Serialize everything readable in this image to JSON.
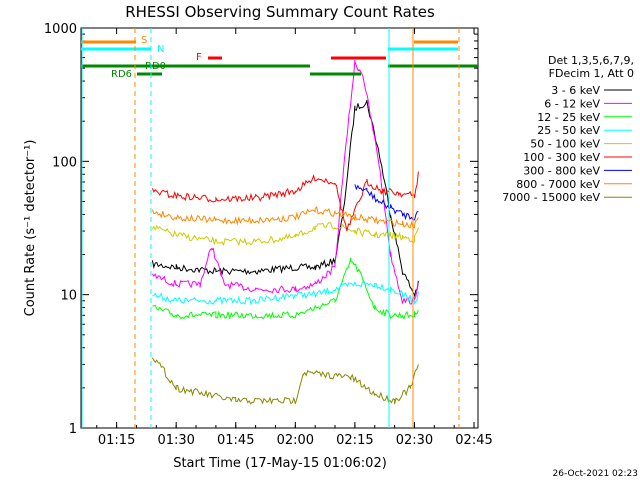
{
  "chart_data": {
    "type": "line",
    "title": "RHESSI Observing Summary Count Rates",
    "xlabel": "Start Time (17-May-15 01:06:02)",
    "ylabel": "Count Rate (s⁻¹ detector⁻¹)",
    "xlim": [
      "01:06:02",
      "02:46"
    ],
    "ylim": [
      1,
      1000
    ],
    "yscale": "log",
    "x_ticks": [
      "01:15",
      "01:30",
      "01:45",
      "02:00",
      "02:15",
      "02:30",
      "02:45"
    ],
    "y_ticks": [
      "1",
      "10",
      "100",
      "1000"
    ],
    "legend_header": [
      "Det 1,3,5,6,7,9,",
      "FDecim 1, Att 0"
    ],
    "legend_placement": "right",
    "grid": false,
    "series": [
      {
        "name": "3 - 6 keV",
        "color": "#000000",
        "x": [
          "01:24",
          "01:30",
          "01:40",
          "01:50",
          "02:00",
          "02:05",
          "02:10",
          "02:12",
          "02:15",
          "02:18",
          "02:21",
          "02:24",
          "02:27",
          "02:30",
          "02:31"
        ],
        "values": [
          17,
          16,
          15,
          15,
          16,
          16,
          18,
          40,
          250,
          280,
          120,
          40,
          15,
          10,
          12
        ]
      },
      {
        "name": "6 - 12 keV",
        "color": "#ff00ff",
        "x": [
          "01:24",
          "01:30",
          "01:36",
          "01:39",
          "01:42",
          "01:50",
          "02:00",
          "02:05",
          "02:10",
          "02:12",
          "02:15",
          "02:17",
          "02:21",
          "02:24",
          "02:27",
          "02:30",
          "02:31"
        ],
        "values": [
          14,
          12,
          12,
          23,
          12,
          11,
          11,
          12,
          16,
          80,
          550,
          450,
          100,
          20,
          9,
          9,
          13
        ]
      },
      {
        "name": "12 - 25 keV",
        "color": "#00ff00",
        "x": [
          "01:24",
          "01:30",
          "01:40",
          "01:50",
          "02:00",
          "02:05",
          "02:10",
          "02:14",
          "02:16",
          "02:20",
          "02:24",
          "02:27",
          "02:30",
          "02:31"
        ],
        "values": [
          8,
          7,
          7,
          7,
          7,
          8,
          9,
          18,
          15,
          8,
          7,
          7,
          7,
          8
        ]
      },
      {
        "name": "25 - 50 keV",
        "color": "#00ffff",
        "x": [
          "01:24",
          "01:30",
          "01:40",
          "01:50",
          "02:00",
          "02:05",
          "02:10",
          "02:15",
          "02:20",
          "02:24",
          "02:27",
          "02:30",
          "02:31"
        ],
        "values": [
          10,
          9,
          9,
          9,
          10,
          10,
          11,
          12,
          12,
          11,
          10,
          9,
          10
        ]
      },
      {
        "name": "50 - 100 keV",
        "color": "#cccc00",
        "x": [
          "01:24",
          "01:30",
          "01:40",
          "01:50",
          "02:00",
          "02:05",
          "02:10",
          "02:15",
          "02:20",
          "02:24",
          "02:27",
          "02:30",
          "02:31"
        ],
        "values": [
          32,
          28,
          25,
          25,
          27,
          32,
          33,
          30,
          28,
          28,
          27,
          26,
          32
        ]
      },
      {
        "name": "100 - 300 keV",
        "color": "#ff0000",
        "x": [
          "01:24",
          "01:30",
          "01:40",
          "01:50",
          "02:00",
          "02:05",
          "02:10",
          "02:13",
          "02:18",
          "02:22",
          "02:26",
          "02:30",
          "02:31"
        ],
        "values": [
          60,
          55,
          52,
          53,
          60,
          75,
          70,
          30,
          70,
          60,
          58,
          55,
          80
        ]
      },
      {
        "name": "300 - 800 keV",
        "color": "#0000ff",
        "x": [
          "02:15",
          "02:18",
          "02:21",
          "02:24",
          "02:27",
          "02:30",
          "02:31"
        ],
        "values": [
          65,
          60,
          50,
          45,
          40,
          38,
          42
        ]
      },
      {
        "name": "800 - 7000 keV",
        "color": "#ff8800",
        "x": [
          "01:24",
          "01:30",
          "01:40",
          "01:50",
          "02:00",
          "02:05",
          "02:10",
          "02:15",
          "02:20",
          "02:24",
          "02:27",
          "02:30",
          "02:31"
        ],
        "values": [
          42,
          38,
          36,
          36,
          38,
          43,
          41,
          38,
          36,
          35,
          34,
          33,
          40
        ]
      },
      {
        "name": "7000 - 15000 keV",
        "color": "#888800",
        "x": [
          "01:24",
          "01:30",
          "01:45",
          "02:00",
          "02:02",
          "02:14",
          "02:20",
          "02:25",
          "02:29",
          "02:31"
        ],
        "values": [
          3.5,
          2,
          1.6,
          1.6,
          2.6,
          2.4,
          1.8,
          1.6,
          2,
          3
        ]
      }
    ],
    "flags": [
      {
        "label": "S",
        "color": "#ff8800"
      },
      {
        "label": "N",
        "color": "#00ffff"
      },
      {
        "label": "F",
        "color": "#ff0000"
      },
      {
        "label": "RD0",
        "color": "#008800"
      },
      {
        "label": "RD6",
        "color": "#008800"
      }
    ],
    "footer_date": "26-Oct-2021 02:23"
  }
}
